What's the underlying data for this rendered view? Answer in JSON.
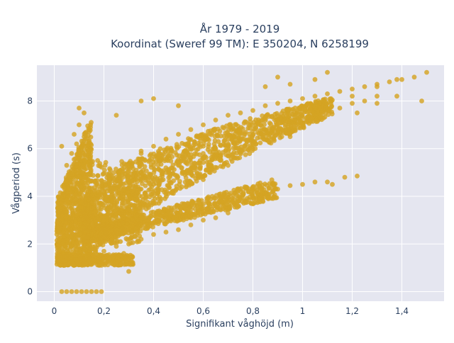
{
  "chart_data": {
    "type": "scatter",
    "title_lines": [
      "År 1979 - 2019",
      "Koordinat (Sweref 99 TM): E 350204, N 6258199"
    ],
    "xlabel": "Signifikant våghöjd (m)",
    "ylabel": "Vågperiod (s)",
    "xlim": [
      -0.07,
      1.57
    ],
    "ylim": [
      -0.4,
      9.5
    ],
    "xticks": [
      {
        "value": 0,
        "label": "0"
      },
      {
        "value": 0.2,
        "label": "0,2"
      },
      {
        "value": 0.4,
        "label": "0,4"
      },
      {
        "value": 0.6,
        "label": "0,6"
      },
      {
        "value": 0.8,
        "label": "0,8"
      },
      {
        "value": 1.0,
        "label": "1"
      },
      {
        "value": 1.2,
        "label": "1,2"
      },
      {
        "value": 1.4,
        "label": "1,4"
      }
    ],
    "yticks": [
      {
        "value": 0,
        "label": "0"
      },
      {
        "value": 2,
        "label": "2"
      },
      {
        "value": 4,
        "label": "4"
      },
      {
        "value": 6,
        "label": "6"
      },
      {
        "value": 8,
        "label": "8"
      }
    ],
    "grid": true,
    "marker_color": "#d4a423",
    "plot_background": "#e5e6f0",
    "series": [
      {
        "points": [
          [
            0.03,
            0
          ],
          [
            0.05,
            0
          ],
          [
            0.07,
            0
          ],
          [
            0.09,
            0
          ],
          [
            0.11,
            0
          ],
          [
            0.13,
            0
          ],
          [
            0.15,
            0
          ],
          [
            0.17,
            0
          ],
          [
            0.19,
            0
          ],
          [
            0.02,
            1.5
          ],
          [
            0.04,
            1.3
          ],
          [
            0.06,
            1.2
          ],
          [
            0.08,
            1.1
          ],
          [
            0.1,
            1.15
          ],
          [
            0.12,
            1.2
          ],
          [
            0.14,
            1.25
          ],
          [
            0.16,
            1.3
          ],
          [
            0.18,
            1.35
          ],
          [
            0.2,
            1.4
          ],
          [
            0.22,
            1.45
          ],
          [
            0.24,
            1.5
          ],
          [
            0.26,
            1.55
          ],
          [
            0.28,
            1.6
          ],
          [
            0.3,
            1.15
          ],
          [
            0.03,
            2
          ],
          [
            0.05,
            2.4
          ],
          [
            0.07,
            2.8
          ],
          [
            0.09,
            3.2
          ],
          [
            0.04,
            3.5
          ],
          [
            0.06,
            4
          ],
          [
            0.08,
            4.4
          ],
          [
            0.1,
            4.8
          ],
          [
            0.05,
            5.3
          ],
          [
            0.07,
            5.8
          ],
          [
            0.03,
            6.1
          ],
          [
            0.09,
            6.2
          ],
          [
            0.12,
            6.5
          ],
          [
            0.1,
            7
          ],
          [
            0.12,
            7.5
          ],
          [
            0.15,
            2.1
          ],
          [
            0.2,
            2.3
          ],
          [
            0.25,
            2.5
          ],
          [
            0.3,
            2.6
          ],
          [
            0.35,
            2.8
          ],
          [
            0.4,
            2.9
          ],
          [
            0.45,
            3.1
          ],
          [
            0.5,
            3.2
          ],
          [
            0.55,
            3.3
          ],
          [
            0.6,
            3.5
          ],
          [
            0.65,
            3.6
          ],
          [
            0.7,
            3.8
          ],
          [
            0.75,
            3.9
          ],
          [
            0.8,
            4.0
          ],
          [
            0.85,
            4.1
          ],
          [
            0.9,
            4.3
          ],
          [
            0.95,
            4.45
          ],
          [
            1.0,
            4.5
          ],
          [
            1.05,
            4.6
          ],
          [
            1.1,
            4.6
          ],
          [
            1.12,
            4.5
          ],
          [
            1.22,
            4.85
          ],
          [
            1.17,
            4.8
          ],
          [
            0.15,
            3.5
          ],
          [
            0.2,
            4.2
          ],
          [
            0.25,
            4.8
          ],
          [
            0.3,
            5.3
          ],
          [
            0.35,
            5.8
          ],
          [
            0.4,
            6.1
          ],
          [
            0.45,
            6.4
          ],
          [
            0.5,
            6.6
          ],
          [
            0.55,
            6.8
          ],
          [
            0.6,
            7.0
          ],
          [
            0.65,
            7.2
          ],
          [
            0.7,
            7.4
          ],
          [
            0.75,
            7.5
          ],
          [
            0.8,
            7.6
          ],
          [
            0.85,
            7.8
          ],
          [
            0.9,
            7.9
          ],
          [
            0.95,
            8.0
          ],
          [
            1.0,
            8.1
          ],
          [
            1.05,
            8.2
          ],
          [
            1.1,
            8.3
          ],
          [
            1.15,
            8.4
          ],
          [
            1.2,
            8.5
          ],
          [
            1.25,
            8.6
          ],
          [
            1.3,
            8.7
          ],
          [
            1.35,
            8.8
          ],
          [
            1.4,
            8.9
          ],
          [
            1.45,
            9.0
          ],
          [
            1.5,
            9.2
          ],
          [
            0.2,
            3.0
          ],
          [
            0.25,
            3.5
          ],
          [
            0.3,
            4.0
          ],
          [
            0.35,
            4.3
          ],
          [
            0.4,
            4.7
          ],
          [
            0.45,
            5.0
          ],
          [
            0.5,
            5.3
          ],
          [
            0.55,
            5.6
          ],
          [
            0.6,
            5.8
          ],
          [
            0.65,
            6.0
          ],
          [
            0.7,
            6.2
          ],
          [
            0.75,
            6.4
          ],
          [
            0.8,
            6.6
          ],
          [
            0.85,
            6.8
          ],
          [
            0.9,
            7.0
          ],
          [
            0.95,
            7.1
          ],
          [
            1.0,
            7.3
          ],
          [
            1.05,
            7.4
          ],
          [
            1.1,
            7.6
          ],
          [
            1.15,
            7.7
          ],
          [
            1.2,
            7.9
          ],
          [
            1.25,
            8.0
          ],
          [
            1.3,
            8.2
          ],
          [
            1.38,
            8.2
          ],
          [
            0.2,
            1.7
          ],
          [
            0.25,
            1.9
          ],
          [
            0.3,
            2.0
          ],
          [
            0.35,
            2.2
          ],
          [
            0.4,
            2.4
          ],
          [
            0.45,
            2.5
          ],
          [
            0.5,
            2.6
          ],
          [
            0.55,
            2.8
          ],
          [
            0.6,
            3.0
          ],
          [
            0.65,
            3.1
          ],
          [
            0.7,
            3.3
          ],
          [
            0.3,
            0.85
          ],
          [
            0.35,
            5.9
          ],
          [
            0.55,
            5.0
          ],
          [
            0.6,
            4.7
          ],
          [
            0.7,
            5.3
          ],
          [
            0.8,
            6.0
          ],
          [
            0.95,
            6.5
          ],
          [
            1.05,
            8.9
          ],
          [
            1.22,
            7.5
          ],
          [
            1.38,
            8.9
          ],
          [
            1.48,
            8.0
          ],
          [
            1.3,
            7.9
          ],
          [
            1.3,
            8.6
          ],
          [
            1.2,
            8.2
          ],
          [
            1.1,
            9.2
          ],
          [
            0.9,
            9.0
          ],
          [
            0.85,
            8.6
          ],
          [
            0.95,
            8.7
          ],
          [
            0.4,
            8.1
          ],
          [
            0.35,
            8.0
          ],
          [
            0.5,
            7.8
          ],
          [
            0.25,
            7.4
          ],
          [
            0.1,
            7.7
          ],
          [
            0.08,
            6.6
          ],
          [
            0.6,
            6.1
          ],
          [
            0.4,
            4.5
          ],
          [
            0.45,
            4.1
          ]
        ]
      }
    ]
  }
}
